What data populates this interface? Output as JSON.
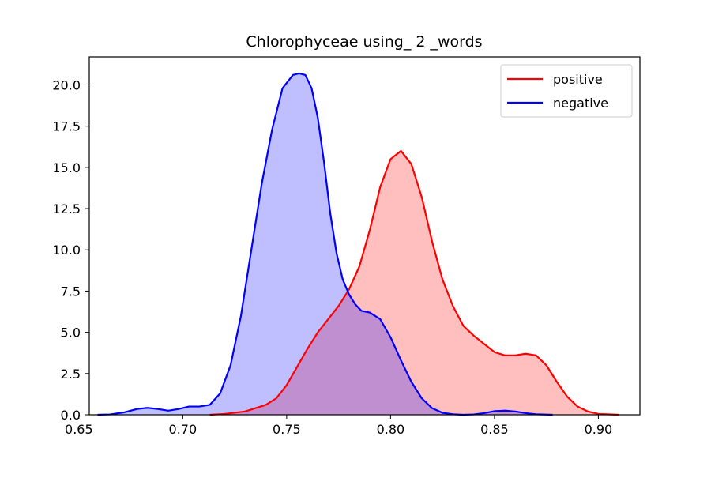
{
  "chart_data": {
    "type": "area",
    "title": "Chlorophyceae using_ 2 _words",
    "xlabel": "",
    "ylabel": "",
    "xlim": [
      0.655,
      0.92
    ],
    "ylim": [
      0,
      21.7
    ],
    "xticks": [
      0.65,
      0.7,
      0.75,
      0.8,
      0.85,
      0.9
    ],
    "xtick_labels": [
      "0.65",
      "0.70",
      "0.75",
      "0.80",
      "0.85",
      "0.90"
    ],
    "yticks": [
      0,
      2.5,
      5,
      7.5,
      10,
      12.5,
      15,
      17.5,
      20
    ],
    "ytick_labels": [
      "0.0",
      "2.5",
      "5.0",
      "7.5",
      "10.0",
      "12.5",
      "15.0",
      "17.5",
      "20.0"
    ],
    "grid": false,
    "legend_position": "top-right",
    "series": [
      {
        "name": "positive",
        "line_color": "#ff0000",
        "fill_color": "#ff0000",
        "x": [
          0.713,
          0.72,
          0.73,
          0.74,
          0.745,
          0.75,
          0.755,
          0.76,
          0.765,
          0.77,
          0.775,
          0.78,
          0.785,
          0.79,
          0.795,
          0.8,
          0.805,
          0.81,
          0.815,
          0.82,
          0.825,
          0.83,
          0.835,
          0.84,
          0.845,
          0.85,
          0.855,
          0.86,
          0.865,
          0.87,
          0.875,
          0.88,
          0.885,
          0.89,
          0.895,
          0.9,
          0.91
        ],
        "y": [
          0.0,
          0.05,
          0.2,
          0.6,
          1.0,
          1.8,
          2.9,
          4.0,
          5.0,
          5.8,
          6.6,
          7.6,
          9.0,
          11.2,
          13.8,
          15.5,
          16.0,
          15.2,
          13.2,
          10.5,
          8.2,
          6.6,
          5.4,
          4.8,
          4.3,
          3.8,
          3.6,
          3.6,
          3.7,
          3.6,
          3.0,
          2.0,
          1.1,
          0.5,
          0.2,
          0.05,
          0.0
        ]
      },
      {
        "name": "negative",
        "line_color": "#0000ff",
        "fill_color": "#0000ff",
        "x": [
          0.659,
          0.665,
          0.672,
          0.678,
          0.683,
          0.688,
          0.693,
          0.698,
          0.703,
          0.708,
          0.713,
          0.718,
          0.723,
          0.728,
          0.733,
          0.738,
          0.743,
          0.748,
          0.753,
          0.756,
          0.759,
          0.762,
          0.765,
          0.768,
          0.771,
          0.774,
          0.777,
          0.78,
          0.783,
          0.786,
          0.79,
          0.795,
          0.8,
          0.805,
          0.81,
          0.815,
          0.82,
          0.825,
          0.83,
          0.835,
          0.84,
          0.845,
          0.85,
          0.855,
          0.86,
          0.865,
          0.87,
          0.878
        ],
        "y": [
          0.0,
          0.02,
          0.15,
          0.35,
          0.42,
          0.35,
          0.25,
          0.35,
          0.5,
          0.5,
          0.6,
          1.3,
          3.0,
          6.0,
          10.0,
          14.0,
          17.3,
          19.8,
          20.6,
          20.7,
          20.6,
          19.8,
          18.0,
          15.3,
          12.2,
          9.8,
          8.2,
          7.3,
          6.7,
          6.3,
          6.2,
          5.8,
          4.7,
          3.3,
          2.0,
          1.0,
          0.4,
          0.12,
          0.03,
          0.0,
          0.02,
          0.1,
          0.22,
          0.25,
          0.2,
          0.1,
          0.03,
          0.0
        ]
      }
    ]
  }
}
